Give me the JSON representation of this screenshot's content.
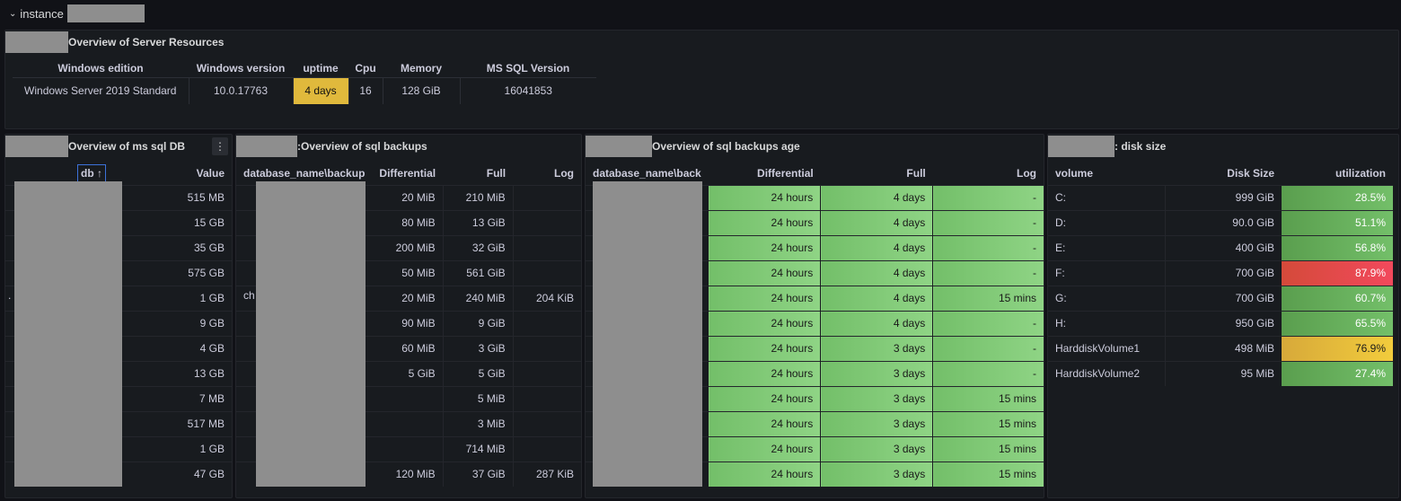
{
  "row": {
    "label": "instance"
  },
  "server": {
    "title": "Overview of Server Resources",
    "headers": [
      "Windows edition",
      "Windows version",
      "uptime",
      "Cpu",
      "Memory",
      "MS SQL Version"
    ],
    "values": [
      "Windows Server 2019 Standard",
      "10.0.17763",
      "4 days",
      "16",
      "128 GiB",
      "16041853"
    ]
  },
  "db": {
    "title": "Overview of ms sql DB",
    "headers": [
      "db",
      "Value"
    ],
    "sort_arrow": "↑",
    "menu": "⋮",
    "rows": [
      "515 MB",
      "15 GB",
      "35 GB",
      "575 GB",
      "1 GB",
      "9 GB",
      "4 GB",
      "13 GB",
      "7 MB",
      "517 MB",
      "1 GB",
      "47 GB"
    ],
    "edge_marker": "."
  },
  "backups": {
    "title": ":Overview of sql backups",
    "headers": [
      "database_name\\backup",
      "Differential",
      "Full",
      "Log"
    ],
    "rows": [
      [
        "20 MiB",
        "210 MiB",
        ""
      ],
      [
        "80 MiB",
        "13 GiB",
        ""
      ],
      [
        "200 MiB",
        "32 GiB",
        ""
      ],
      [
        "50 MiB",
        "561 GiB",
        ""
      ],
      [
        "20 MiB",
        "240 MiB",
        "204 KiB"
      ],
      [
        "90 MiB",
        "9 GiB",
        ""
      ],
      [
        "60 MiB",
        "3 GiB",
        ""
      ],
      [
        "5 GiB",
        "5 GiB",
        ""
      ],
      [
        "",
        "5 MiB",
        ""
      ],
      [
        "",
        "3 MiB",
        ""
      ],
      [
        "",
        "714 MiB",
        ""
      ],
      [
        "120 MiB",
        "37 GiB",
        "287 KiB"
      ]
    ],
    "partial_text": "ch"
  },
  "age": {
    "title": "Overview of sql backups age",
    "headers": [
      "database_name\\back",
      "Differential",
      "Full",
      "Log"
    ],
    "rows": [
      [
        "24 hours",
        "4 days",
        "-"
      ],
      [
        "24 hours",
        "4 days",
        "-"
      ],
      [
        "24 hours",
        "4 days",
        "-"
      ],
      [
        "24 hours",
        "4 days",
        "-"
      ],
      [
        "24 hours",
        "4 days",
        "15 mins"
      ],
      [
        "24 hours",
        "4 days",
        "-"
      ],
      [
        "24 hours",
        "3 days",
        "-"
      ],
      [
        "24 hours",
        "3 days",
        "-"
      ],
      [
        "24 hours",
        "3 days",
        "15 mins"
      ],
      [
        "24 hours",
        "3 days",
        "15 mins"
      ],
      [
        "24 hours",
        "3 days",
        "15 mins"
      ],
      [
        "24 hours",
        "3 days",
        "15 mins"
      ]
    ]
  },
  "disk": {
    "title": ": disk size",
    "headers": [
      "volume",
      "Disk Size",
      "utilization"
    ],
    "rows": [
      [
        "C:",
        "999 GiB",
        "28.5%",
        "green"
      ],
      [
        "D:",
        "90.0 GiB",
        "51.1%",
        "green"
      ],
      [
        "E:",
        "400 GiB",
        "56.8%",
        "green"
      ],
      [
        "F:",
        "700 GiB",
        "87.9%",
        "red"
      ],
      [
        "G:",
        "700 GiB",
        "60.7%",
        "green"
      ],
      [
        "H:",
        "950 GiB",
        "65.5%",
        "green"
      ],
      [
        "HarddiskVolume1",
        "498 MiB",
        "76.9%",
        "yellow"
      ],
      [
        "HarddiskVolume2",
        "95 MiB",
        "27.4%",
        "green"
      ]
    ]
  },
  "colors": {
    "green": "#73bf69",
    "red": "#f2495c",
    "yellow": "#f2cc3c",
    "uptime": "#e0b93c",
    "background": "#111217",
    "panel": "#181b1f"
  }
}
